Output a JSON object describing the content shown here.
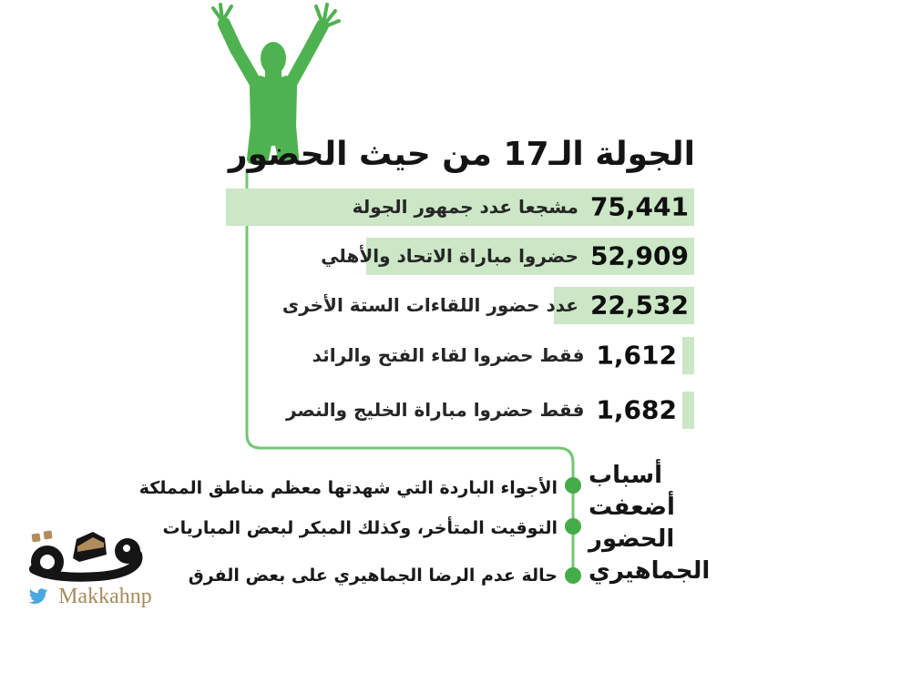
{
  "title": "الجولة الـ17 من حيث الحضور",
  "chart_data": {
    "type": "bar",
    "orientation": "horizontal-rtl",
    "title": "الجولة الـ17 من حيث الحضور",
    "max": 75441,
    "bars": [
      {
        "display": "75,441",
        "value": 75441,
        "label": "مشجعا عدد جمهور الجولة"
      },
      {
        "display": "52,909",
        "value": 52909,
        "label": "حضروا مباراة الاتحاد والأهلي"
      },
      {
        "display": "22,532",
        "value": 22532,
        "label": "عدد حضور اللقاءات الستة الأخرى"
      },
      {
        "display": "1,612",
        "value": 1612,
        "label": "فقط حضروا لقاء الفتح والرائد"
      },
      {
        "display": "1,682",
        "value": 1682,
        "label": "فقط حضروا مباراة الخليج والنصر"
      }
    ],
    "bar_color": "#cbe7c6",
    "legend": "none",
    "grid": "off"
  },
  "reasons": {
    "heading_lines": [
      "أسباب",
      "أضعفت",
      "الحضور",
      "الجماهيري"
    ],
    "items": [
      "الأجواء الباردة التي شهدتها معظم مناطق المملكة",
      "التوقيت المتأخر، وكذلك المبكر لبعض المباريات",
      "حالة عدم الرضا الجماهيري على بعض الفرق"
    ]
  },
  "footer": {
    "logo_text": "مكة",
    "twitter_handle": "Makkahnp"
  },
  "colors": {
    "figure_green": "#4fb250",
    "bar_green": "#cbe7c6",
    "line_green": "#74c674",
    "dot_green": "#44ac48",
    "tan": "#b08c5c",
    "twitter_blue": "#4aa8e0",
    "text_dark": "#141414"
  }
}
